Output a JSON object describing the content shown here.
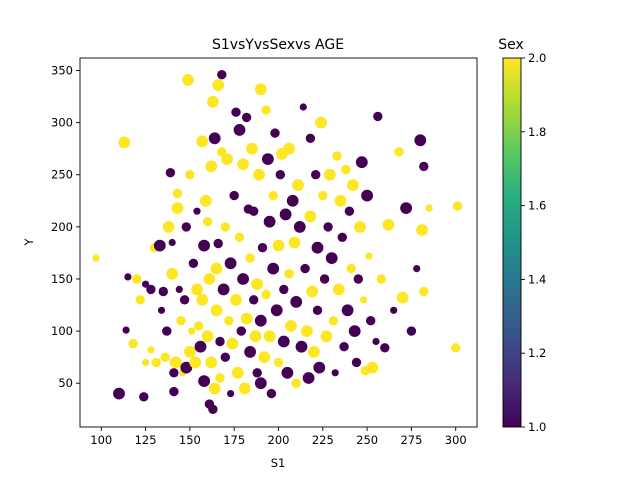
{
  "chart_data": {
    "type": "scatter",
    "title": "S1vsYvsSexvs AGE",
    "xlabel": "S1",
    "ylabel": "Y",
    "xlim": [
      88,
      312
    ],
    "ylim": [
      8,
      362
    ],
    "xticks": [
      100,
      125,
      150,
      175,
      200,
      225,
      250,
      275,
      300
    ],
    "yticks": [
      50,
      100,
      150,
      200,
      250,
      300,
      350
    ],
    "grid": false,
    "colorbar": {
      "label": "Sex",
      "range": [
        1.0,
        2.0
      ],
      "ticks": [
        1.0,
        1.2,
        1.4,
        1.6,
        1.8,
        2.0
      ],
      "colormap": "viridis"
    },
    "colors": {
      "sex_1": "#440154",
      "sex_2": "#fde725"
    },
    "size_encoding": "AGE",
    "points": [
      {
        "x": 97,
        "y": 170,
        "c": 2,
        "s": "s"
      },
      {
        "x": 110,
        "y": 40,
        "c": 1,
        "s": "l"
      },
      {
        "x": 113,
        "y": 281,
        "c": 2,
        "s": "l"
      },
      {
        "x": 114,
        "y": 101,
        "c": 1,
        "s": "s"
      },
      {
        "x": 115,
        "y": 152,
        "c": 1,
        "s": "s"
      },
      {
        "x": 118,
        "y": 88,
        "c": 2,
        "s": "m"
      },
      {
        "x": 120,
        "y": 150,
        "c": 2,
        "s": "m"
      },
      {
        "x": 122,
        "y": 130,
        "c": 2,
        "s": "m"
      },
      {
        "x": 124,
        "y": 37,
        "c": 1,
        "s": "m"
      },
      {
        "x": 125,
        "y": 70,
        "c": 2,
        "s": "s"
      },
      {
        "x": 125,
        "y": 145,
        "c": 1,
        "s": "s"
      },
      {
        "x": 128,
        "y": 82,
        "c": 2,
        "s": "s"
      },
      {
        "x": 128,
        "y": 140,
        "c": 1,
        "s": "m"
      },
      {
        "x": 130,
        "y": 180,
        "c": 2,
        "s": "m"
      },
      {
        "x": 131,
        "y": 70,
        "c": 2,
        "s": "m"
      },
      {
        "x": 133,
        "y": 182,
        "c": 1,
        "s": "l"
      },
      {
        "x": 134,
        "y": 120,
        "c": 1,
        "s": "s"
      },
      {
        "x": 135,
        "y": 138,
        "c": 1,
        "s": "m"
      },
      {
        "x": 136,
        "y": 75,
        "c": 2,
        "s": "m"
      },
      {
        "x": 137,
        "y": 100,
        "c": 1,
        "s": "m"
      },
      {
        "x": 138,
        "y": 200,
        "c": 2,
        "s": "l"
      },
      {
        "x": 139,
        "y": 252,
        "c": 1,
        "s": "m"
      },
      {
        "x": 140,
        "y": 155,
        "c": 2,
        "s": "l"
      },
      {
        "x": 140,
        "y": 185,
        "c": 1,
        "s": "s"
      },
      {
        "x": 141,
        "y": 60,
        "c": 1,
        "s": "m"
      },
      {
        "x": 141,
        "y": 42,
        "c": 1,
        "s": "m"
      },
      {
        "x": 142,
        "y": 70,
        "c": 2,
        "s": "l"
      },
      {
        "x": 143,
        "y": 218,
        "c": 2,
        "s": "l"
      },
      {
        "x": 143,
        "y": 232,
        "c": 2,
        "s": "m"
      },
      {
        "x": 144,
        "y": 140,
        "c": 1,
        "s": "s"
      },
      {
        "x": 145,
        "y": 110,
        "c": 2,
        "s": "m"
      },
      {
        "x": 146,
        "y": 60,
        "c": 2,
        "s": "s"
      },
      {
        "x": 147,
        "y": 130,
        "c": 1,
        "s": "m"
      },
      {
        "x": 148,
        "y": 65,
        "c": 1,
        "s": "l"
      },
      {
        "x": 148,
        "y": 200,
        "c": 1,
        "s": "m"
      },
      {
        "x": 149,
        "y": 341,
        "c": 2,
        "s": "l"
      },
      {
        "x": 150,
        "y": 250,
        "c": 2,
        "s": "m"
      },
      {
        "x": 150,
        "y": 80,
        "c": 2,
        "s": "l"
      },
      {
        "x": 151,
        "y": 100,
        "c": 2,
        "s": "s"
      },
      {
        "x": 152,
        "y": 165,
        "c": 1,
        "s": "m"
      },
      {
        "x": 153,
        "y": 70,
        "c": 2,
        "s": "l"
      },
      {
        "x": 154,
        "y": 215,
        "c": 1,
        "s": "s"
      },
      {
        "x": 154,
        "y": 140,
        "c": 2,
        "s": "l"
      },
      {
        "x": 155,
        "y": 105,
        "c": 2,
        "s": "m"
      },
      {
        "x": 156,
        "y": 85,
        "c": 1,
        "s": "l"
      },
      {
        "x": 157,
        "y": 282,
        "c": 2,
        "s": "l"
      },
      {
        "x": 157,
        "y": 130,
        "c": 2,
        "s": "l"
      },
      {
        "x": 158,
        "y": 52,
        "c": 1,
        "s": "l"
      },
      {
        "x": 158,
        "y": 182,
        "c": 1,
        "s": "l"
      },
      {
        "x": 159,
        "y": 225,
        "c": 2,
        "s": "l"
      },
      {
        "x": 160,
        "y": 205,
        "c": 2,
        "s": "m"
      },
      {
        "x": 160,
        "y": 95,
        "c": 2,
        "s": "l"
      },
      {
        "x": 161,
        "y": 30,
        "c": 1,
        "s": "m"
      },
      {
        "x": 161,
        "y": 150,
        "c": 2,
        "s": "l"
      },
      {
        "x": 162,
        "y": 70,
        "c": 2,
        "s": "l"
      },
      {
        "x": 162,
        "y": 258,
        "c": 2,
        "s": "l"
      },
      {
        "x": 163,
        "y": 320,
        "c": 2,
        "s": "l"
      },
      {
        "x": 163,
        "y": 25,
        "c": 1,
        "s": "m"
      },
      {
        "x": 164,
        "y": 285,
        "c": 1,
        "s": "l"
      },
      {
        "x": 164,
        "y": 45,
        "c": 2,
        "s": "l"
      },
      {
        "x": 165,
        "y": 120,
        "c": 2,
        "s": "l"
      },
      {
        "x": 165,
        "y": 160,
        "c": 2,
        "s": "l"
      },
      {
        "x": 166,
        "y": 336,
        "c": 2,
        "s": "l"
      },
      {
        "x": 166,
        "y": 184,
        "c": 1,
        "s": "m"
      },
      {
        "x": 167,
        "y": 90,
        "c": 1,
        "s": "m"
      },
      {
        "x": 167,
        "y": 55,
        "c": 2,
        "s": "m"
      },
      {
        "x": 168,
        "y": 346,
        "c": 1,
        "s": "m"
      },
      {
        "x": 168,
        "y": 272,
        "c": 2,
        "s": "m"
      },
      {
        "x": 169,
        "y": 140,
        "c": 1,
        "s": "l"
      },
      {
        "x": 170,
        "y": 75,
        "c": 1,
        "s": "m"
      },
      {
        "x": 170,
        "y": 200,
        "c": 2,
        "s": "m"
      },
      {
        "x": 171,
        "y": 265,
        "c": 2,
        "s": "l"
      },
      {
        "x": 172,
        "y": 110,
        "c": 2,
        "s": "m"
      },
      {
        "x": 173,
        "y": 165,
        "c": 1,
        "s": "l"
      },
      {
        "x": 173,
        "y": 40,
        "c": 1,
        "s": "s"
      },
      {
        "x": 174,
        "y": 88,
        "c": 2,
        "s": "l"
      },
      {
        "x": 175,
        "y": 230,
        "c": 1,
        "s": "m"
      },
      {
        "x": 176,
        "y": 130,
        "c": 2,
        "s": "l"
      },
      {
        "x": 176,
        "y": 310,
        "c": 1,
        "s": "m"
      },
      {
        "x": 177,
        "y": 60,
        "c": 2,
        "s": "l"
      },
      {
        "x": 178,
        "y": 293,
        "c": 1,
        "s": "l"
      },
      {
        "x": 178,
        "y": 190,
        "c": 2,
        "s": "m"
      },
      {
        "x": 179,
        "y": 100,
        "c": 1,
        "s": "m"
      },
      {
        "x": 180,
        "y": 150,
        "c": 1,
        "s": "l"
      },
      {
        "x": 180,
        "y": 260,
        "c": 2,
        "s": "l"
      },
      {
        "x": 181,
        "y": 45,
        "c": 2,
        "s": "l"
      },
      {
        "x": 182,
        "y": 112,
        "c": 2,
        "s": "l"
      },
      {
        "x": 182,
        "y": 305,
        "c": 1,
        "s": "m"
      },
      {
        "x": 183,
        "y": 217,
        "c": 1,
        "s": "m"
      },
      {
        "x": 184,
        "y": 80,
        "c": 1,
        "s": "l"
      },
      {
        "x": 184,
        "y": 170,
        "c": 2,
        "s": "m"
      },
      {
        "x": 185,
        "y": 275,
        "c": 2,
        "s": "l"
      },
      {
        "x": 186,
        "y": 130,
        "c": 1,
        "s": "m"
      },
      {
        "x": 186,
        "y": 215,
        "c": 1,
        "s": "m"
      },
      {
        "x": 187,
        "y": 95,
        "c": 2,
        "s": "l"
      },
      {
        "x": 188,
        "y": 145,
        "c": 2,
        "s": "l"
      },
      {
        "x": 188,
        "y": 60,
        "c": 1,
        "s": "m"
      },
      {
        "x": 189,
        "y": 250,
        "c": 2,
        "s": "l"
      },
      {
        "x": 190,
        "y": 332,
        "c": 2,
        "s": "l"
      },
      {
        "x": 190,
        "y": 110,
        "c": 1,
        "s": "l"
      },
      {
        "x": 190,
        "y": 50,
        "c": 1,
        "s": "l"
      },
      {
        "x": 191,
        "y": 180,
        "c": 1,
        "s": "m"
      },
      {
        "x": 192,
        "y": 75,
        "c": 2,
        "s": "l"
      },
      {
        "x": 193,
        "y": 312,
        "c": 2,
        "s": "m"
      },
      {
        "x": 193,
        "y": 135,
        "c": 2,
        "s": "m"
      },
      {
        "x": 194,
        "y": 265,
        "c": 1,
        "s": "l"
      },
      {
        "x": 195,
        "y": 205,
        "c": 1,
        "s": "l"
      },
      {
        "x": 195,
        "y": 95,
        "c": 2,
        "s": "l"
      },
      {
        "x": 196,
        "y": 40,
        "c": 1,
        "s": "m"
      },
      {
        "x": 197,
        "y": 160,
        "c": 1,
        "s": "l"
      },
      {
        "x": 197,
        "y": 230,
        "c": 2,
        "s": "m"
      },
      {
        "x": 198,
        "y": 290,
        "c": 1,
        "s": "m"
      },
      {
        "x": 199,
        "y": 120,
        "c": 1,
        "s": "l"
      },
      {
        "x": 200,
        "y": 70,
        "c": 2,
        "s": "m"
      },
      {
        "x": 200,
        "y": 182,
        "c": 2,
        "s": "l"
      },
      {
        "x": 201,
        "y": 250,
        "c": 1,
        "s": "m"
      },
      {
        "x": 202,
        "y": 270,
        "c": 2,
        "s": "l"
      },
      {
        "x": 203,
        "y": 140,
        "c": 1,
        "s": "m"
      },
      {
        "x": 203,
        "y": 90,
        "c": 1,
        "s": "l"
      },
      {
        "x": 204,
        "y": 212,
        "c": 1,
        "s": "l"
      },
      {
        "x": 205,
        "y": 60,
        "c": 1,
        "s": "l"
      },
      {
        "x": 206,
        "y": 275,
        "c": 2,
        "s": "l"
      },
      {
        "x": 206,
        "y": 155,
        "c": 2,
        "s": "m"
      },
      {
        "x": 207,
        "y": 105,
        "c": 2,
        "s": "l"
      },
      {
        "x": 208,
        "y": 225,
        "c": 1,
        "s": "l"
      },
      {
        "x": 209,
        "y": 185,
        "c": 2,
        "s": "l"
      },
      {
        "x": 210,
        "y": 128,
        "c": 1,
        "s": "l"
      },
      {
        "x": 210,
        "y": 50,
        "c": 2,
        "s": "m"
      },
      {
        "x": 211,
        "y": 240,
        "c": 2,
        "s": "l"
      },
      {
        "x": 212,
        "y": 200,
        "c": 1,
        "s": "l"
      },
      {
        "x": 213,
        "y": 85,
        "c": 1,
        "s": "l"
      },
      {
        "x": 214,
        "y": 315,
        "c": 1,
        "s": "s"
      },
      {
        "x": 215,
        "y": 160,
        "c": 1,
        "s": "m"
      },
      {
        "x": 216,
        "y": 100,
        "c": 2,
        "s": "l"
      },
      {
        "x": 217,
        "y": 55,
        "c": 1,
        "s": "l"
      },
      {
        "x": 218,
        "y": 285,
        "c": 1,
        "s": "m"
      },
      {
        "x": 218,
        "y": 210,
        "c": 2,
        "s": "l"
      },
      {
        "x": 219,
        "y": 138,
        "c": 2,
        "s": "l"
      },
      {
        "x": 220,
        "y": 80,
        "c": 2,
        "s": "l"
      },
      {
        "x": 221,
        "y": 250,
        "c": 1,
        "s": "m"
      },
      {
        "x": 222,
        "y": 180,
        "c": 1,
        "s": "l"
      },
      {
        "x": 222,
        "y": 120,
        "c": 1,
        "s": "m"
      },
      {
        "x": 223,
        "y": 65,
        "c": 1,
        "s": "l"
      },
      {
        "x": 224,
        "y": 300,
        "c": 2,
        "s": "l"
      },
      {
        "x": 225,
        "y": 230,
        "c": 2,
        "s": "m"
      },
      {
        "x": 226,
        "y": 150,
        "c": 1,
        "s": "m"
      },
      {
        "x": 227,
        "y": 95,
        "c": 2,
        "s": "l"
      },
      {
        "x": 228,
        "y": 200,
        "c": 1,
        "s": "m"
      },
      {
        "x": 229,
        "y": 250,
        "c": 2,
        "s": "l"
      },
      {
        "x": 230,
        "y": 170,
        "c": 1,
        "s": "l"
      },
      {
        "x": 231,
        "y": 110,
        "c": 2,
        "s": "m"
      },
      {
        "x": 232,
        "y": 60,
        "c": 1,
        "s": "s"
      },
      {
        "x": 233,
        "y": 268,
        "c": 2,
        "s": "m"
      },
      {
        "x": 234,
        "y": 140,
        "c": 2,
        "s": "l"
      },
      {
        "x": 235,
        "y": 225,
        "c": 2,
        "s": "l"
      },
      {
        "x": 236,
        "y": 190,
        "c": 1,
        "s": "m"
      },
      {
        "x": 237,
        "y": 85,
        "c": 1,
        "s": "m"
      },
      {
        "x": 238,
        "y": 255,
        "c": 2,
        "s": "m"
      },
      {
        "x": 239,
        "y": 120,
        "c": 1,
        "s": "l"
      },
      {
        "x": 240,
        "y": 215,
        "c": 1,
        "s": "m"
      },
      {
        "x": 241,
        "y": 160,
        "c": 2,
        "s": "m"
      },
      {
        "x": 242,
        "y": 240,
        "c": 2,
        "s": "l"
      },
      {
        "x": 243,
        "y": 100,
        "c": 1,
        "s": "l"
      },
      {
        "x": 244,
        "y": 70,
        "c": 1,
        "s": "m"
      },
      {
        "x": 245,
        "y": 150,
        "c": 1,
        "s": "m"
      },
      {
        "x": 246,
        "y": 200,
        "c": 2,
        "s": "l"
      },
      {
        "x": 247,
        "y": 262,
        "c": 1,
        "s": "l"
      },
      {
        "x": 248,
        "y": 130,
        "c": 2,
        "s": "s"
      },
      {
        "x": 249,
        "y": 62,
        "c": 2,
        "s": "m"
      },
      {
        "x": 250,
        "y": 230,
        "c": 1,
        "s": "l"
      },
      {
        "x": 251,
        "y": 172,
        "c": 2,
        "s": "s"
      },
      {
        "x": 252,
        "y": 110,
        "c": 1,
        "s": "m"
      },
      {
        "x": 253,
        "y": 65,
        "c": 2,
        "s": "l"
      },
      {
        "x": 255,
        "y": 90,
        "c": 1,
        "s": "s"
      },
      {
        "x": 256,
        "y": 306,
        "c": 1,
        "s": "m"
      },
      {
        "x": 258,
        "y": 150,
        "c": 2,
        "s": "m"
      },
      {
        "x": 260,
        "y": 84,
        "c": 1,
        "s": "m"
      },
      {
        "x": 262,
        "y": 202,
        "c": 2,
        "s": "l"
      },
      {
        "x": 265,
        "y": 120,
        "c": 1,
        "s": "s"
      },
      {
        "x": 268,
        "y": 272,
        "c": 2,
        "s": "m"
      },
      {
        "x": 270,
        "y": 132,
        "c": 2,
        "s": "l"
      },
      {
        "x": 272,
        "y": 218,
        "c": 1,
        "s": "l"
      },
      {
        "x": 275,
        "y": 100,
        "c": 1,
        "s": "m"
      },
      {
        "x": 278,
        "y": 160,
        "c": 1,
        "s": "s"
      },
      {
        "x": 280,
        "y": 283,
        "c": 1,
        "s": "l"
      },
      {
        "x": 281,
        "y": 197,
        "c": 2,
        "s": "l"
      },
      {
        "x": 282,
        "y": 258,
        "c": 1,
        "s": "m"
      },
      {
        "x": 282,
        "y": 138,
        "c": 2,
        "s": "m"
      },
      {
        "x": 285,
        "y": 218,
        "c": 2,
        "s": "s"
      },
      {
        "x": 300,
        "y": 84,
        "c": 2,
        "s": "m"
      },
      {
        "x": 301,
        "y": 220,
        "c": 2,
        "s": "m"
      }
    ]
  }
}
